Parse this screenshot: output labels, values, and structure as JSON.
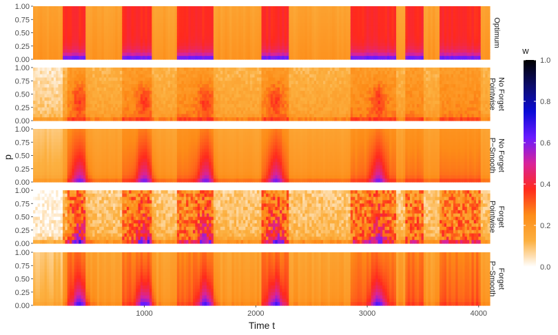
{
  "chart_data": {
    "type": "heatmap",
    "xlabel": "Time t",
    "ylabel": "p",
    "xlim": [
      1,
      4100
    ],
    "x_ticks": [
      1000,
      2000,
      3000,
      4000
    ],
    "ylim": [
      0,
      1
    ],
    "y_ticks": [
      "0.00",
      "0.25",
      "0.50",
      "0.75",
      "1.00"
    ],
    "colorbar": {
      "title": "w",
      "range": [
        0,
        1
      ],
      "ticks": [
        "0.0",
        "0.2",
        "0.4",
        "0.6",
        "0.8",
        "1.0"
      ],
      "colors": [
        "#ffffff",
        "#fcb040",
        "#fd8c18",
        "#ff2a1d",
        "#d8249b",
        "#6a1bff",
        "#0b0bd6",
        "#0c0c6b",
        "#000000"
      ]
    },
    "panels": [
      {
        "label_lines": [
          "Optimum"
        ]
      },
      {
        "label_lines": [
          "No Forget",
          "Pointwise"
        ]
      },
      {
        "label_lines": [
          "No Forget",
          "P−Smooth"
        ]
      },
      {
        "label_lines": [
          "Forget",
          "Pointwise"
        ]
      },
      {
        "label_lines": [
          "Forget",
          "P−Smooth"
        ]
      }
    ],
    "high_weight_periods": [
      [
        270,
        480
      ],
      [
        800,
        1060
      ],
      [
        1300,
        1620
      ],
      [
        2050,
        2300
      ],
      [
        2850,
        3250
      ],
      [
        3350,
        3500
      ],
      [
        3650,
        4020
      ]
    ],
    "peak_times": [
      420,
      1000,
      1550,
      2180,
      3100
    ]
  }
}
